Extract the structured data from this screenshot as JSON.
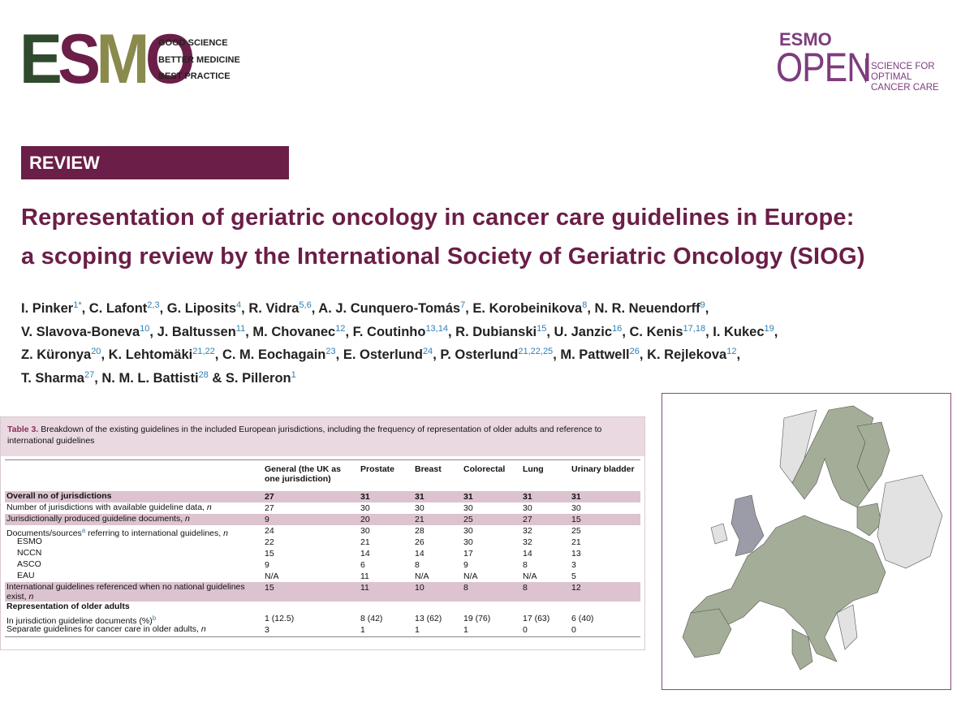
{
  "header": {
    "logo": "ESMO",
    "taglines": [
      "GOOD SCIENCE",
      "BETTER MEDICINE",
      "BEST PRACTICE"
    ],
    "journal": {
      "top": "ESMO",
      "main": "OPEN",
      "tagline": [
        "SCIENCE FOR OPTIMAL",
        "CANCER CARE"
      ]
    }
  },
  "section": "REVIEW",
  "title": [
    "Representation of geriatric oncology in cancer care guidelines in Europe:",
    "a scoping review by the International Society of Geriatric Oncology (SIOG)"
  ],
  "separator": ",",
  "final_separator": "&",
  "authors": [
    [
      {
        "name": "I. Pinker",
        "sup": "1*"
      },
      {
        "name": "C. Lafont",
        "sup": "2,3"
      },
      {
        "name": "G. Liposits",
        "sup": "4"
      },
      {
        "name": "R. Vidra",
        "sup": "5,6"
      },
      {
        "name": "A. J. Cunquero-Tomás",
        "sup": "7"
      },
      {
        "name": "E. Korobeinikova",
        "sup": "8"
      },
      {
        "name": "N. R. Neuendorff",
        "sup": "9"
      }
    ],
    [
      {
        "name": "V. Slavova-Boneva",
        "sup": "10"
      },
      {
        "name": "J. Baltussen",
        "sup": "11"
      },
      {
        "name": "M. Chovanec",
        "sup": "12"
      },
      {
        "name": "F. Coutinho",
        "sup": "13,14"
      },
      {
        "name": "R. Dubianski",
        "sup": "15"
      },
      {
        "name": "U. Janzic",
        "sup": "16"
      },
      {
        "name": "C. Kenis",
        "sup": "17,18"
      },
      {
        "name": "I. Kukec",
        "sup": "19"
      }
    ],
    [
      {
        "name": "Z. Küronya",
        "sup": "20"
      },
      {
        "name": "K. Lehtomäki",
        "sup": "21,22"
      },
      {
        "name": "C. M. Eochagain",
        "sup": "23"
      },
      {
        "name": "E. Osterlund",
        "sup": "24"
      },
      {
        "name": "P. Osterlund",
        "sup": "21,22,25"
      },
      {
        "name": "M. Pattwell",
        "sup": "26"
      },
      {
        "name": "K. Rejlekova",
        "sup": "12"
      }
    ],
    [
      {
        "name": "T. Sharma",
        "sup": "27"
      },
      {
        "name": "N. M. L. Battisti",
        "sup": "28"
      },
      {
        "name": "S. Pilleron",
        "sup": "1"
      }
    ]
  ],
  "table": {
    "label": "Table 3.",
    "caption": "Breakdown of the existing guidelines in the included European jurisdictions, including the frequency of representation of older adults and reference to international guidelines",
    "columns": [
      "General (the UK as one jurisdiction)",
      "Prostate",
      "Breast",
      "Colorectal",
      "Lung",
      "Urinary bladder"
    ],
    "rows": [
      {
        "label": [
          {
            "t": "Overall no of jurisdictions"
          }
        ],
        "cells": [
          27,
          31,
          31,
          31,
          31,
          31
        ],
        "style": "bold shaded"
      },
      {
        "label": [
          {
            "t": "Number of jurisdictions with available guideline data, "
          },
          {
            "i": "n"
          }
        ],
        "cells": [
          27,
          30,
          30,
          30,
          30,
          30
        ],
        "style": "plain"
      },
      {
        "label": [
          {
            "t": "Jurisdictionally produced guideline documents, "
          },
          {
            "i": "n"
          }
        ],
        "cells": [
          9,
          20,
          21,
          25,
          27,
          15
        ],
        "style": "shaded"
      },
      {
        "label": [
          {
            "t": "Documents/sources"
          },
          {
            "sup": "a"
          },
          {
            "t": " referring to international guidelines, "
          },
          {
            "i": "n"
          }
        ],
        "cells": [
          24,
          30,
          28,
          30,
          32,
          25
        ],
        "style": "plain"
      },
      {
        "label": [
          {
            "t": "ESMO"
          }
        ],
        "cells": [
          22,
          21,
          26,
          30,
          32,
          21
        ],
        "style": "indent"
      },
      {
        "label": [
          {
            "t": "NCCN"
          }
        ],
        "cells": [
          15,
          14,
          14,
          17,
          14,
          13
        ],
        "style": "indent"
      },
      {
        "label": [
          {
            "t": "ASCO"
          }
        ],
        "cells": [
          9,
          6,
          8,
          9,
          8,
          3
        ],
        "style": "indent"
      },
      {
        "label": [
          {
            "t": "EAU"
          }
        ],
        "cells": [
          "N/A",
          11,
          "N/A",
          "N/A",
          "N/A",
          5
        ],
        "style": "indent"
      },
      {
        "label": [
          {
            "t": "International guidelines referenced when no national guidelines exist, "
          },
          {
            "i": "n"
          }
        ],
        "cells": [
          15,
          11,
          10,
          8,
          8,
          12
        ],
        "style": "shaded tall"
      },
      {
        "label": [
          {
            "t": "Representation of older adults"
          }
        ],
        "cells": [],
        "style": "bold"
      },
      {
        "label": [
          {
            "t": "In jurisdiction guideline documents (%)"
          },
          {
            "sup": "b"
          }
        ],
        "cells": [
          "1 (12.5)",
          "8 (42)",
          "13 (62)",
          "19 (76)",
          "17 (63)",
          "6 (40)"
        ],
        "style": "plain"
      },
      {
        "label": [
          {
            "t": "Separate guidelines for cancer care in older adults, "
          },
          {
            "i": "n"
          }
        ],
        "cells": [
          3,
          1,
          1,
          1,
          0,
          0
        ],
        "style": "plain"
      }
    ]
  }
}
